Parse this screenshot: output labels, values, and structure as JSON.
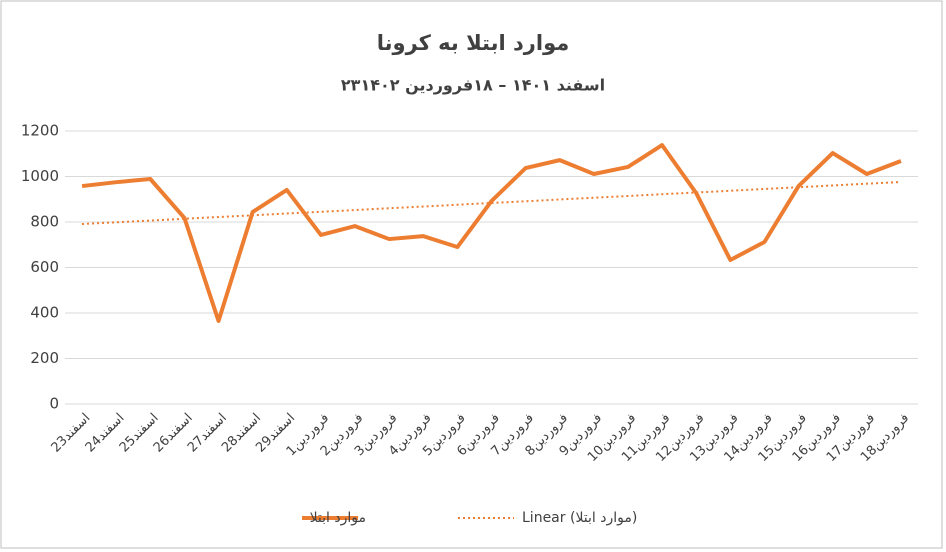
{
  "chart_data": {
    "type": "line",
    "title": "موارد ابتلا به کرونا",
    "subtitle": "۲۳اسفند ۱۴۰۱ – ۱۸فروردین ۱۴۰۲",
    "categories": [
      "23اسفند",
      "24اسفند",
      "25اسفند",
      "26اسفند",
      "27اسفند",
      "28اسفند",
      "29اسفند",
      "1فروردین",
      "2فروردین",
      "3فروردین",
      "4فروردین",
      "5فروردین",
      "6فروردین",
      "7فروردین",
      "8فروردین",
      "9فروردین",
      "10فروردین",
      "11فروردین",
      "12فروردین",
      "13فروردین",
      "14فروردین",
      "15فروردین",
      "16فروردین",
      "17فروردین",
      "18فروردین"
    ],
    "series": [
      {
        "name": "موارد ابتلا",
        "color": "#ed7d31",
        "values": [
          958,
          975,
          989,
          818,
          365,
          844,
          941,
          743,
          782,
          725,
          738,
          690,
          892,
          1037,
          1072,
          1011,
          1042,
          1138,
          927,
          633,
          712,
          958,
          1103,
          1011,
          1068
        ]
      }
    ],
    "trendline": {
      "name": "Linear (موارد ابتلا)",
      "color": "#ed7d31",
      "values": [
        791,
        976
      ]
    },
    "ylim": [
      0,
      1200
    ],
    "yticks": [
      0,
      200,
      400,
      600,
      800,
      1000,
      1200
    ],
    "grid": true
  }
}
